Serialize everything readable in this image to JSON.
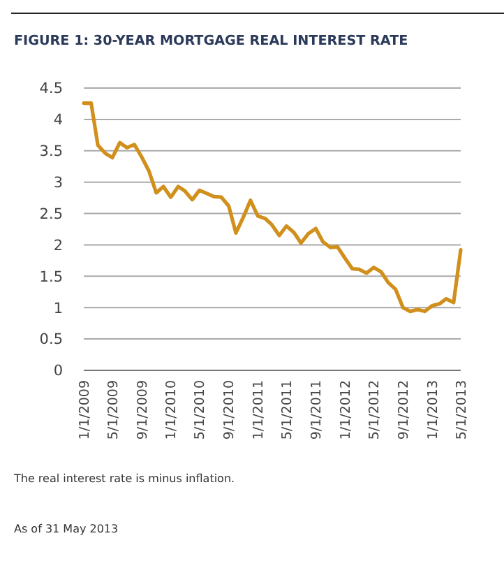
{
  "chart_data": {
    "type": "line",
    "title": "FIGURE 1: 30-YEAR MORTGAGE REAL INTEREST RATE",
    "x": [
      "2009-01",
      "2009-02",
      "2009-03",
      "2009-04",
      "2009-05",
      "2009-06",
      "2009-07",
      "2009-08",
      "2009-09",
      "2009-10",
      "2009-11",
      "2009-12",
      "2010-01",
      "2010-02",
      "2010-03",
      "2010-04",
      "2010-05",
      "2010-06",
      "2010-07",
      "2010-08",
      "2010-09",
      "2010-10",
      "2010-11",
      "2010-12",
      "2011-01",
      "2011-02",
      "2011-03",
      "2011-04",
      "2011-05",
      "2011-06",
      "2011-07",
      "2011-08",
      "2011-09",
      "2011-10",
      "2011-11",
      "2011-12",
      "2012-01",
      "2012-02",
      "2012-03",
      "2012-04",
      "2012-05",
      "2012-06",
      "2012-07",
      "2012-08",
      "2012-09",
      "2012-10",
      "2012-11",
      "2012-12",
      "2013-01",
      "2013-02",
      "2013-03",
      "2013-04",
      "2013-05"
    ],
    "series": [
      {
        "color": "#d18f1c",
        "values": [
          4.26,
          4.26,
          3.59,
          3.46,
          3.39,
          3.63,
          3.55,
          3.6,
          3.4,
          3.18,
          2.83,
          2.93,
          2.76,
          2.93,
          2.86,
          2.72,
          2.87,
          2.82,
          2.77,
          2.76,
          2.62,
          2.19,
          2.44,
          2.71,
          2.46,
          2.42,
          2.32,
          2.15,
          2.3,
          2.2,
          2.03,
          2.18,
          2.26,
          2.05,
          1.96,
          1.97,
          1.79,
          1.62,
          1.61,
          1.55,
          1.64,
          1.57,
          1.4,
          1.29,
          1.0,
          0.94,
          0.97,
          0.94,
          1.03,
          1.06,
          1.14,
          1.08,
          1.92
        ]
      }
    ],
    "xlim": [
      "2009-01",
      "2013-05"
    ],
    "xticks": [
      {
        "value": "2009-01",
        "label": "1/1/2009"
      },
      {
        "value": "2009-05",
        "label": "5/1/2009"
      },
      {
        "value": "2009-09",
        "label": "9/1/2009"
      },
      {
        "value": "2010-01",
        "label": "1/1/2010"
      },
      {
        "value": "2010-05",
        "label": "5/1/2010"
      },
      {
        "value": "2010-09",
        "label": "9/1/2010"
      },
      {
        "value": "2011-01",
        "label": "1/1/2011"
      },
      {
        "value": "2011-05",
        "label": "5/1/2011"
      },
      {
        "value": "2011-09",
        "label": "9/1/2011"
      },
      {
        "value": "2012-01",
        "label": "1/1/2012"
      },
      {
        "value": "2012-05",
        "label": "5/1/2012"
      },
      {
        "value": "2012-09",
        "label": "9/1/2012"
      },
      {
        "value": "2013-01",
        "label": "1/1/2013"
      },
      {
        "value": "2013-05",
        "label": "5/1/2013"
      }
    ],
    "ylim": [
      0,
      4.5
    ],
    "yticks": [
      0,
      0.5,
      1,
      1.5,
      2,
      2.5,
      3,
      3.5,
      4,
      4.5
    ],
    "grid": "y",
    "marker": "none",
    "line_style": "solid",
    "annotations": [
      "The real interest rate is minus inflation.",
      "As of 31 May 2013"
    ]
  }
}
